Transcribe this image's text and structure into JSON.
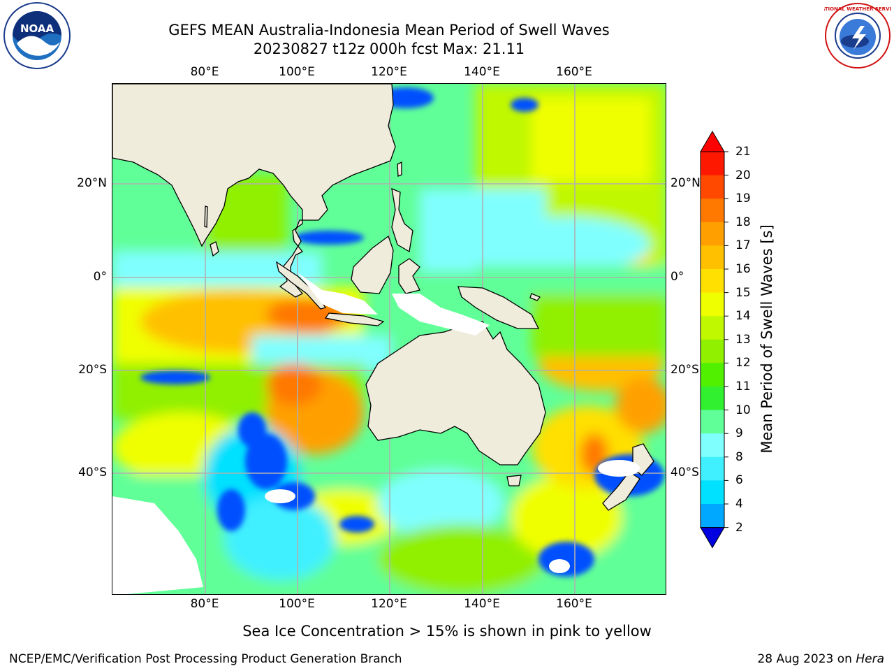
{
  "title": {
    "line1": "GEFS MEAN Australia-Indonesia Mean Period of Swell Waves",
    "line2": "20230827 t12z 000h fcst   Max: 21.11"
  },
  "axes": {
    "lon_labels": [
      "80°E",
      "100°E",
      "120°E",
      "140°E",
      "160°E"
    ],
    "lat_labels": [
      "20°N",
      "0°",
      "20°S",
      "40°S"
    ]
  },
  "colorbar": {
    "label": "Mean Period of Swell Waves [s]",
    "ticks": [
      "2",
      "4",
      "6",
      "8",
      "9",
      "10",
      "11",
      "12",
      "13",
      "14",
      "15",
      "16",
      "17",
      "18",
      "19",
      "20",
      "21"
    ],
    "colors": [
      "#0050ff",
      "#00a8ff",
      "#00e0ff",
      "#40f0ff",
      "#80ffff",
      "#60ff98",
      "#30f030",
      "#50f000",
      "#90f000",
      "#c0f800",
      "#f0ff00",
      "#ffe000",
      "#ffc000",
      "#ffa000",
      "#ff7800",
      "#ff4800",
      "#ff1800"
    ],
    "under_color": "#0000e0",
    "over_color": "#ff0000"
  },
  "logos": {
    "noaa": "NOAA",
    "nws": "NATIONAL WEATHER SERVICE"
  },
  "note": "Sea Ice Concentration > 15% is shown in pink to yellow",
  "footer": {
    "left": "NCEP/EMC/Verification Post Processing Product Generation Branch",
    "right_date": "28 Aug 2023 on ",
    "right_host": "Hera"
  },
  "map_colors": {
    "land": "#efecdc",
    "grid": "#b0b0b0",
    "coast": "#000000"
  }
}
